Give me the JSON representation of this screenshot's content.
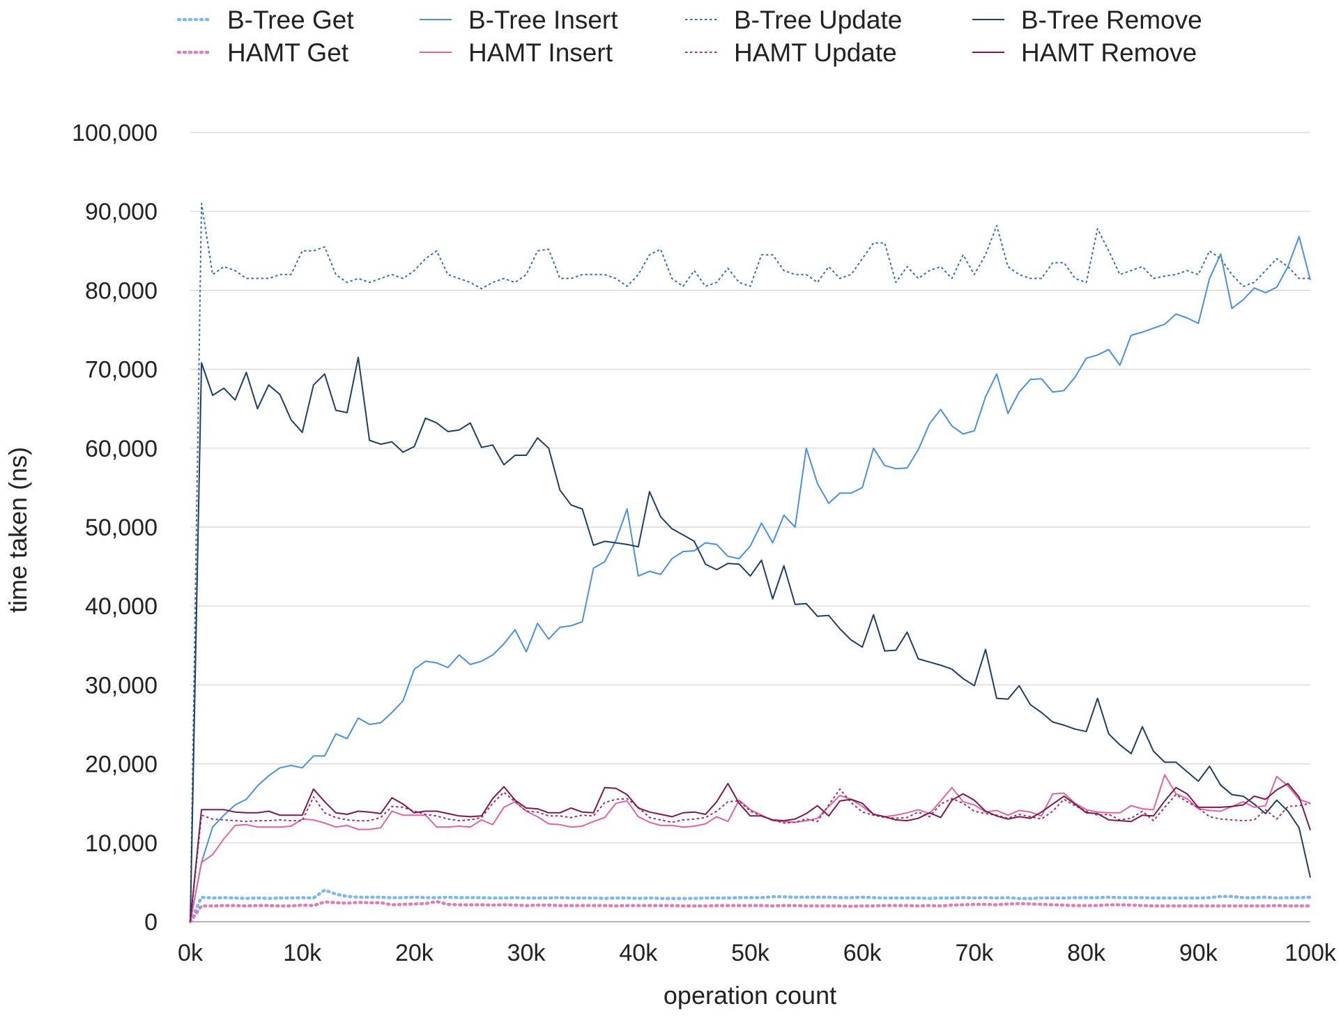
{
  "chart_data": {
    "type": "line",
    "xlabel": "operation count",
    "ylabel": "time taken (ns)",
    "xlim": [
      0,
      100000
    ],
    "ylim": [
      0,
      100000
    ],
    "x_ticks": [
      "0k",
      "10k",
      "20k",
      "30k",
      "40k",
      "50k",
      "60k",
      "70k",
      "80k",
      "90k",
      "100k"
    ],
    "y_ticks": [
      "0",
      "10,000",
      "20,000",
      "30,000",
      "40,000",
      "50,000",
      "60,000",
      "70,000",
      "80,000",
      "90,000",
      "100,000"
    ],
    "grid": "horizontal",
    "legend_position": "top",
    "x_step": 1000,
    "series": [
      {
        "name": "B-Tree Get",
        "color": "#7fb8ec",
        "dash": "dot-thick",
        "values": [
          0,
          3100,
          3000,
          3050,
          3000,
          2950,
          3000,
          2950,
          3000,
          3000,
          3050,
          3000,
          4000,
          3500,
          3200,
          3100,
          3100,
          3100,
          3050,
          3050,
          3100,
          3050,
          3050,
          3100,
          3050,
          3050,
          3050,
          3000,
          3000,
          3050,
          3000,
          3000,
          3000,
          3050,
          3000,
          3000,
          3000,
          2950,
          3000,
          3000,
          2950,
          3000,
          2950,
          2950,
          2950,
          2950,
          3000,
          3000,
          3000,
          3050,
          3050,
          3050,
          3150,
          3150,
          3100,
          3100,
          3100,
          3100,
          3050,
          3050,
          3100,
          3050,
          3000,
          3000,
          3000,
          3000,
          2950,
          3000,
          3000,
          3050,
          3000,
          3050,
          3000,
          3050,
          2950,
          2950,
          3000,
          3000,
          3000,
          3050,
          3050,
          3050,
          3100,
          3050,
          3050,
          3050,
          3000,
          3000,
          3000,
          3000,
          3000,
          3050,
          3200,
          3200,
          3050,
          3050,
          3100,
          3000,
          3050,
          3050,
          3100
        ]
      },
      {
        "name": "B-Tree Insert",
        "color": "#4a90e2",
        "dash": "solid",
        "values": [
          0,
          7500,
          12000,
          13500,
          14800,
          15500,
          17200,
          18500,
          19500,
          19800,
          19500,
          21000,
          21000,
          23800,
          23200,
          25800,
          25000,
          25200,
          26500,
          28000,
          32000,
          33000,
          32800,
          32200,
          33800,
          32600,
          33000,
          33800,
          35200,
          37000,
          34200,
          37800,
          35800,
          37300,
          37500,
          38000,
          44800,
          45600,
          48300,
          52300,
          43800,
          44400,
          44000,
          46000,
          46900,
          47000,
          48000,
          47800,
          46300,
          46000,
          47600,
          50500,
          48000,
          51500,
          50000,
          60000,
          55500,
          53000,
          54300,
          54300,
          55000,
          60000,
          57800,
          57400,
          57500,
          59800,
          63100,
          64900,
          62800,
          61800,
          62200,
          66500,
          69400,
          64400,
          67100,
          68700,
          68800,
          67100,
          67300,
          69000,
          71400,
          71800,
          72500,
          70500,
          74300,
          74700,
          75200,
          75700,
          77000,
          76500,
          75800,
          81500,
          84600,
          77700,
          78800,
          80300,
          79700,
          80400,
          83000,
          86800,
          81300
        ]
      },
      {
        "name": "B-Tree Update",
        "color": "#3a6fb0",
        "dash": "dashed",
        "values": [
          0,
          91000,
          82000,
          83000,
          82500,
          81500,
          81500,
          81500,
          82000,
          82000,
          85000,
          85000,
          85500,
          82000,
          81000,
          81500,
          81000,
          81500,
          82000,
          81500,
          82500,
          84000,
          85000,
          82000,
          81500,
          81000,
          80200,
          81000,
          81500,
          81000,
          82000,
          85000,
          85200,
          81500,
          81500,
          82000,
          82000,
          82000,
          81500,
          80500,
          82000,
          84500,
          85200,
          81500,
          80500,
          82500,
          80500,
          81000,
          82800,
          81000,
          80500,
          84500,
          84500,
          82500,
          82000,
          82000,
          81000,
          83000,
          81500,
          82000,
          84000,
          86000,
          86000,
          81000,
          83000,
          81500,
          82500,
          83000,
          81500,
          84500,
          82000,
          84500,
          88200,
          83000,
          82000,
          81500,
          81500,
          83500,
          83500,
          81500,
          81000,
          87800,
          85000,
          82000,
          82500,
          83000,
          81500,
          81800,
          82000,
          82500,
          82000,
          85000,
          84000,
          82000,
          80500,
          81000,
          82500,
          84000,
          83000,
          81500,
          81500
        ]
      },
      {
        "name": "B-Tree Remove",
        "color": "#1f3e66",
        "dash": "solid",
        "values": [
          0,
          70800,
          66700,
          67600,
          66100,
          69600,
          65000,
          68000,
          66800,
          63600,
          62000,
          68000,
          69400,
          64800,
          64500,
          71500,
          61000,
          60500,
          60800,
          59500,
          60200,
          63800,
          63200,
          62100,
          62300,
          63200,
          60100,
          60400,
          57900,
          59100,
          59100,
          61300,
          60000,
          54700,
          52800,
          52300,
          47700,
          48200,
          48000,
          47800,
          47500,
          54500,
          51300,
          49800,
          49000,
          48200,
          45300,
          44600,
          45400,
          45300,
          43800,
          45800,
          40900,
          45100,
          40200,
          40300,
          38700,
          38800,
          37100,
          35700,
          34800,
          38900,
          34300,
          34400,
          36700,
          33300,
          32900,
          32500,
          32000,
          30800,
          29900,
          34500,
          28300,
          28200,
          29900,
          27500,
          26500,
          25300,
          24900,
          24400,
          24100,
          28300,
          23800,
          22400,
          21300,
          24700,
          21600,
          20200,
          20200,
          19000,
          17800,
          19700,
          17300,
          16100,
          15900,
          14900,
          13700,
          15400,
          14000,
          11900,
          5600
        ]
      },
      {
        "name": "HAMT Get",
        "color": "#e07cb8",
        "dash": "dot-thick",
        "values": [
          0,
          2000,
          2000,
          2050,
          2050,
          2000,
          2050,
          2050,
          2000,
          2000,
          2100,
          2050,
          2500,
          2400,
          2350,
          2450,
          2400,
          2400,
          2150,
          2200,
          2250,
          2300,
          2550,
          2200,
          2150,
          2150,
          2150,
          2100,
          2150,
          2100,
          2050,
          2100,
          2100,
          2050,
          2050,
          2050,
          2050,
          2050,
          2000,
          2050,
          2050,
          2050,
          2050,
          2050,
          2000,
          2000,
          2000,
          2050,
          2050,
          2050,
          2050,
          2050,
          2000,
          2050,
          2050,
          2000,
          2000,
          2000,
          2000,
          1950,
          2000,
          2000,
          2050,
          2050,
          2050,
          2000,
          2050,
          2000,
          2100,
          2150,
          2200,
          2200,
          2150,
          2250,
          2300,
          2250,
          2200,
          2150,
          2100,
          2050,
          2050,
          2050,
          2150,
          2150,
          2100,
          2050,
          2000,
          2000,
          2000,
          2000,
          2000,
          2000,
          2000,
          2000,
          2000,
          2000,
          2000,
          2050,
          2000,
          2000,
          2000
        ]
      },
      {
        "name": "HAMT Insert",
        "color": "#e064a4",
        "dash": "solid",
        "values": [
          0,
          7500,
          8500,
          10500,
          12200,
          12300,
          12000,
          12000,
          12000,
          12100,
          13000,
          12900,
          12500,
          12000,
          12200,
          11700,
          11700,
          11900,
          14000,
          13500,
          13500,
          13500,
          12000,
          12000,
          12100,
          12000,
          12900,
          12300,
          14500,
          15200,
          14000,
          13300,
          12400,
          12300,
          12000,
          12100,
          12700,
          13200,
          15000,
          15300,
          13300,
          12600,
          12200,
          12200,
          12000,
          12100,
          12400,
          13300,
          12700,
          15400,
          14200,
          13500,
          12800,
          12700,
          12600,
          12800,
          13100,
          14600,
          16000,
          15500,
          14600,
          13600,
          13300,
          13500,
          13800,
          14200,
          13700,
          15300,
          17000,
          15200,
          14800,
          13900,
          14100,
          13500,
          14100,
          13900,
          13400,
          16200,
          16300,
          15000,
          14200,
          13900,
          13800,
          13800,
          14700,
          14300,
          14200,
          18600,
          16200,
          15600,
          14300,
          14100,
          14000,
          14600,
          15200,
          14500,
          14700,
          18400,
          17200,
          15500,
          15000
        ]
      },
      {
        "name": "HAMT Update",
        "color": "#a03070",
        "dash": "dashed",
        "values": [
          0,
          13500,
          13000,
          12900,
          12800,
          12700,
          12800,
          12800,
          12900,
          12800,
          12800,
          15800,
          13800,
          13200,
          12900,
          12800,
          12800,
          13200,
          14600,
          14500,
          14000,
          13600,
          13400,
          13000,
          12800,
          12900,
          13200,
          15000,
          16400,
          15200,
          14000,
          13900,
          13400,
          13400,
          13200,
          13500,
          13400,
          15100,
          15500,
          15600,
          14500,
          13200,
          12900,
          12600,
          12900,
          13000,
          13200,
          14000,
          15200,
          15300,
          14000,
          13400,
          12900,
          12500,
          12600,
          13000,
          12700,
          14800,
          16800,
          15100,
          13900,
          13500,
          13200,
          13100,
          13200,
          13900,
          13300,
          14900,
          15600,
          15000,
          14000,
          13700,
          13500,
          13100,
          13600,
          13300,
          13000,
          14000,
          15500,
          14700,
          14000,
          13500,
          13600,
          12900,
          13100,
          14000,
          12800,
          14500,
          16100,
          15200,
          14400,
          13300,
          13000,
          12900,
          12800,
          12900,
          14200,
          13000,
          14600,
          14700,
          15000
        ]
      },
      {
        "name": "HAMT Remove",
        "color": "#7a1a4e",
        "dash": "solid",
        "values": [
          0,
          14200,
          14200,
          14200,
          13900,
          13800,
          13800,
          14000,
          13500,
          13500,
          13500,
          16800,
          15200,
          13800,
          13600,
          14000,
          13900,
          13700,
          15700,
          14900,
          13800,
          14000,
          14000,
          13700,
          13400,
          13300,
          13400,
          15600,
          17100,
          15400,
          14400,
          14300,
          13800,
          13800,
          14400,
          13900,
          13800,
          17000,
          16900,
          16100,
          14400,
          13900,
          13600,
          13300,
          13800,
          13900,
          13600,
          15200,
          17500,
          15000,
          13400,
          13400,
          12900,
          12800,
          13000,
          13700,
          14700,
          13400,
          15300,
          15500,
          15000,
          13600,
          13300,
          12900,
          12800,
          13100,
          13800,
          13200,
          15400,
          16200,
          15400,
          14000,
          13400,
          13000,
          13300,
          13100,
          13900,
          14900,
          15900,
          14900,
          13800,
          13700,
          12900,
          12800,
          12700,
          13500,
          13400,
          15300,
          17000,
          16200,
          14500,
          14500,
          14500,
          14600,
          14800,
          15900,
          15500,
          16700,
          17500,
          15800,
          11600
        ]
      }
    ]
  }
}
